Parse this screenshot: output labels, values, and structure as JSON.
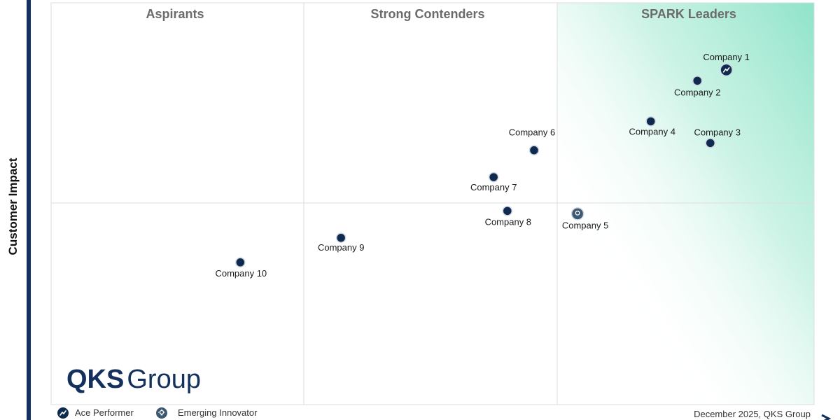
{
  "chart_data": {
    "type": "scatter",
    "title": "",
    "ylabel": "Customer Impact",
    "xlabel": "",
    "xlim": [
      0,
      100
    ],
    "ylim": [
      0,
      100
    ],
    "quadrants": [
      "Aspirants",
      "Strong Contenders",
      "SPARK Leaders"
    ],
    "points": [
      {
        "label": "Company 1",
        "x": 88.5,
        "y": 83.3,
        "marker": "ace-performer"
      },
      {
        "label": "Company 2",
        "x": 84.7,
        "y": 80.6,
        "marker": "plain"
      },
      {
        "label": "Company 3",
        "x": 86.4,
        "y": 65.1,
        "marker": "plain"
      },
      {
        "label": "Company 4",
        "x": 78.6,
        "y": 70.5,
        "marker": "plain"
      },
      {
        "label": "Company 5",
        "x": 69.0,
        "y": 47.5,
        "marker": "emerging-innovator"
      },
      {
        "label": "Company 6",
        "x": 63.3,
        "y": 63.3,
        "marker": "plain"
      },
      {
        "label": "Company 7",
        "x": 58.0,
        "y": 56.6,
        "marker": "plain"
      },
      {
        "label": "Company 8",
        "x": 59.8,
        "y": 48.2,
        "marker": "plain"
      },
      {
        "label": "Company 9",
        "x": 38.0,
        "y": 41.5,
        "marker": "plain"
      },
      {
        "label": "Company 10",
        "x": 24.8,
        "y": 35.4,
        "marker": "plain"
      }
    ]
  },
  "legend": {
    "ace_performer": "Ace Performer",
    "emerging_innovator": "Emerging Innovator"
  },
  "logo": {
    "bold": "QKS",
    "light": "Group"
  },
  "footer": "December 2025, QKS Group",
  "colors": {
    "marker": "#0e2a4f",
    "leader_gradient": "#8fe3c9",
    "grid": "#dddddd",
    "axis": "#14305c"
  }
}
